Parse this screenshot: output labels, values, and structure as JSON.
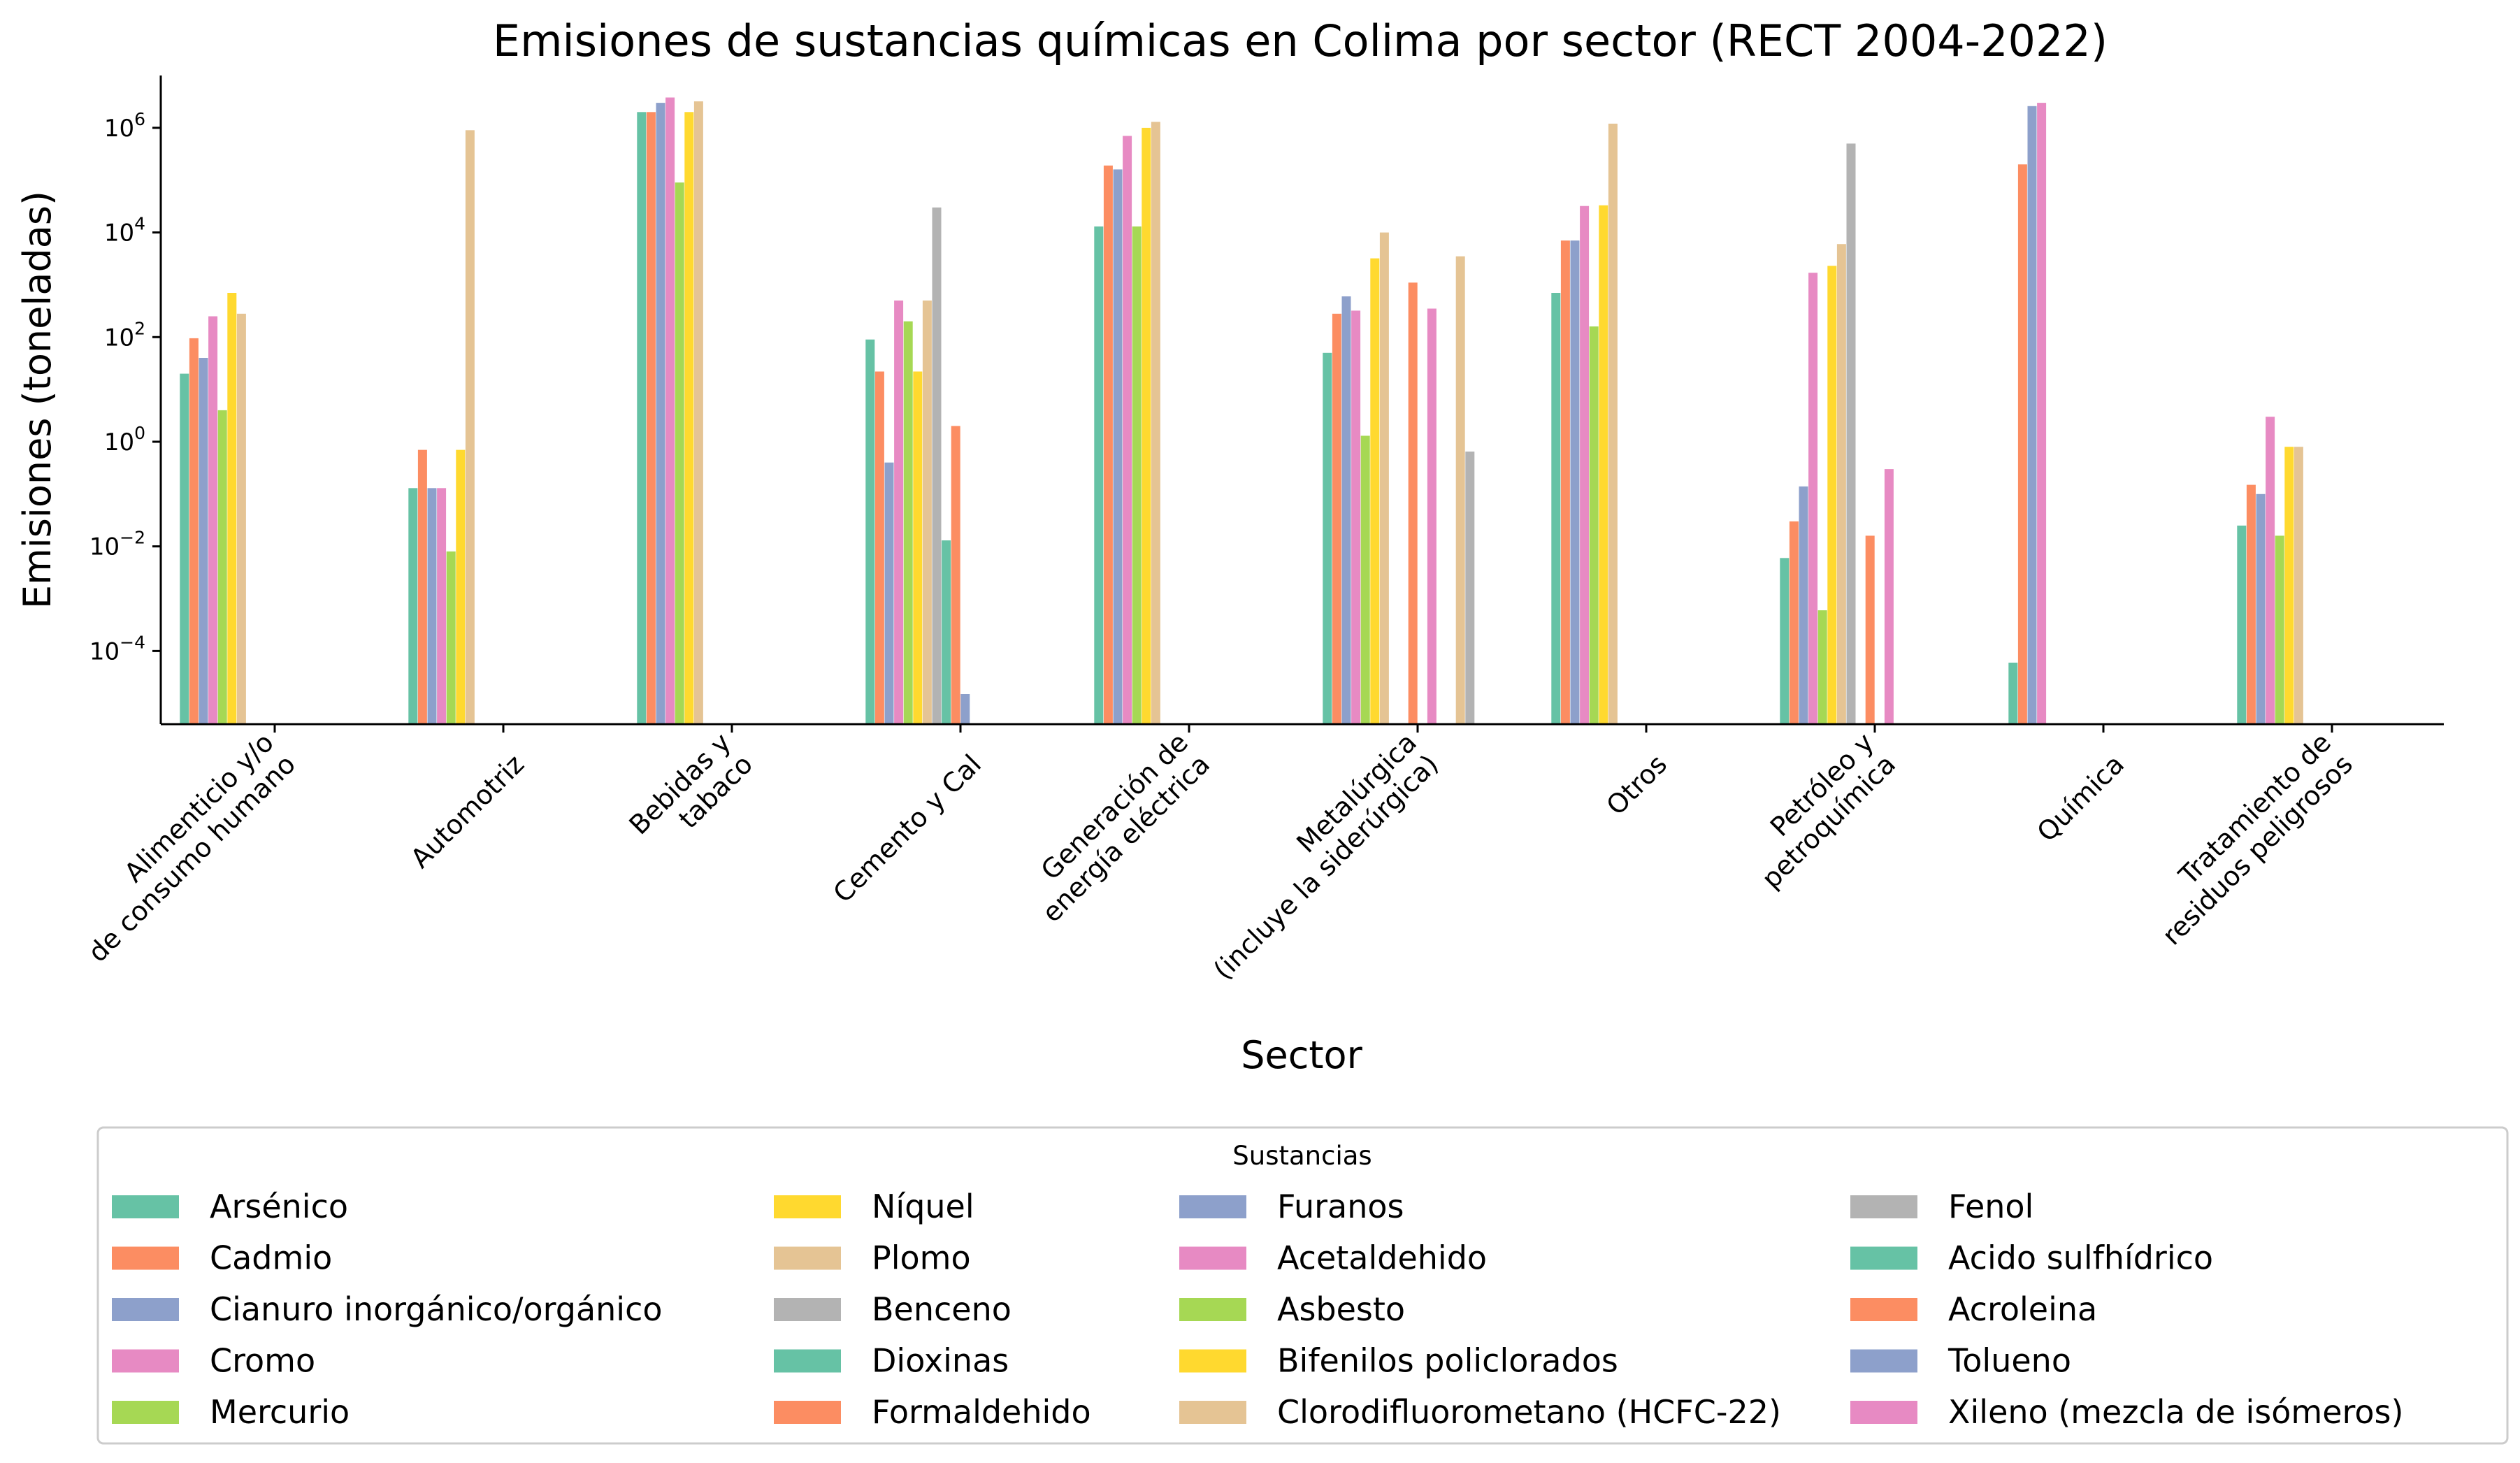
{
  "chart_data": {
    "type": "bar",
    "title": "Emisiones de sustancias químicas en Colima por sector (RECT 2004-2022)",
    "xlabel": "Sector",
    "ylabel": "Emisiones (toneladas)",
    "yscale": "log",
    "ylim": [
      4e-06,
      10000000
    ],
    "yticks": [
      {
        "value": 0.0001,
        "base": "10",
        "exp": "−4"
      },
      {
        "value": 0.01,
        "base": "10",
        "exp": "−2"
      },
      {
        "value": 1,
        "base": "10",
        "exp": "0"
      },
      {
        "value": 100,
        "base": "10",
        "exp": "2"
      },
      {
        "value": 10000,
        "base": "10",
        "exp": "4"
      },
      {
        "value": 1000000,
        "base": "10",
        "exp": "6"
      }
    ],
    "categories": [
      [
        "Alimenticio y/o",
        "de consumo humano"
      ],
      [
        "Automotriz"
      ],
      [
        "Bebidas y",
        "tabaco"
      ],
      [
        "Cemento y Cal"
      ],
      [
        "Generación de",
        "energía eléctrica"
      ],
      [
        "Metalúrgica",
        "(incluye la siderúrgica)"
      ],
      [
        "Otros"
      ],
      [
        "Petróleo y",
        "petroquímica"
      ],
      [
        "Química"
      ],
      [
        "Tratamiento de",
        "residuos peligrosos"
      ]
    ],
    "legend": {
      "title": "Sustancias",
      "placement": "below",
      "columns": 4
    },
    "series": [
      {
        "name": "Arsénico",
        "color": "#66c2a5",
        "values": [
          20,
          0.13,
          2000000,
          90,
          13000,
          50,
          700,
          0.006,
          6e-05,
          0.025
        ]
      },
      {
        "name": "Cadmio",
        "color": "#fc8d62",
        "values": [
          95,
          0.7,
          2000000,
          22,
          190000,
          280,
          7000,
          0.03,
          200000,
          0.15
        ]
      },
      {
        "name": "Cianuro inorgánico/orgánico",
        "color": "#8da0cb",
        "values": [
          40,
          0.13,
          3000000,
          0.4,
          160000,
          600,
          7000,
          0.14,
          2600000,
          0.1
        ]
      },
      {
        "name": "Cromo",
        "color": "#e78ac3",
        "values": [
          250,
          0.13,
          3800000,
          500,
          700000,
          320,
          32000,
          1700,
          3000000,
          3
        ]
      },
      {
        "name": "Mercurio",
        "color": "#a6d854",
        "values": [
          4,
          0.008,
          90000,
          200,
          13000,
          1.3,
          160,
          0.0006,
          null,
          0.016
        ]
      },
      {
        "name": "Níquel",
        "color": "#ffd92f",
        "values": [
          700,
          0.7,
          2000000,
          22,
          1000000,
          3200,
          33000,
          2300,
          null,
          0.8
        ]
      },
      {
        "name": "Plomo",
        "color": "#e5c494",
        "values": [
          280,
          900000,
          3200000,
          500,
          1300000,
          10000,
          1200000,
          6000,
          null,
          0.8
        ]
      },
      {
        "name": "Benceno",
        "color": "#b3b3b3",
        "values": [
          null,
          null,
          null,
          30000,
          null,
          null,
          null,
          500000,
          null,
          null
        ]
      },
      {
        "name": "Dioxinas",
        "color": "#66c2a5",
        "values": [
          null,
          null,
          null,
          0.013,
          null,
          null,
          null,
          null,
          null,
          null
        ]
      },
      {
        "name": "Formaldehido",
        "color": "#fc8d62",
        "values": [
          null,
          null,
          null,
          2,
          null,
          1100,
          null,
          0.016,
          null,
          null
        ]
      },
      {
        "name": "Furanos",
        "color": "#8da0cb",
        "values": [
          null,
          null,
          null,
          1.5e-05,
          null,
          null,
          null,
          null,
          null,
          null
        ]
      },
      {
        "name": "Acetaldehido",
        "color": "#e78ac3",
        "values": [
          null,
          null,
          null,
          null,
          null,
          350,
          null,
          0.3,
          null,
          null
        ]
      },
      {
        "name": "Asbesto",
        "color": "#a6d854",
        "values": [
          null,
          null,
          null,
          null,
          null,
          null,
          null,
          null,
          null,
          null
        ]
      },
      {
        "name": "Bifenilos policlorados",
        "color": "#ffd92f",
        "values": [
          null,
          null,
          null,
          null,
          null,
          null,
          null,
          null,
          null,
          null
        ]
      },
      {
        "name": "Clorodifluorometano (HCFC-22)",
        "color": "#e5c494",
        "values": [
          null,
          null,
          null,
          null,
          null,
          3500,
          null,
          null,
          null,
          null
        ]
      },
      {
        "name": "Fenol",
        "color": "#b3b3b3",
        "values": [
          null,
          null,
          null,
          null,
          null,
          0.65,
          null,
          null,
          null,
          null
        ]
      },
      {
        "name": "Acido sulfhídrico",
        "color": "#66c2a5",
        "values": [
          null,
          null,
          null,
          null,
          null,
          null,
          null,
          null,
          null,
          null
        ]
      },
      {
        "name": "Acroleina",
        "color": "#fc8d62",
        "values": [
          null,
          null,
          null,
          null,
          null,
          null,
          null,
          null,
          null,
          null
        ]
      },
      {
        "name": "Tolueno",
        "color": "#8da0cb",
        "values": [
          null,
          null,
          null,
          null,
          null,
          null,
          null,
          null,
          null,
          null
        ]
      },
      {
        "name": "Xileno (mezcla de isómeros)",
        "color": "#e78ac3",
        "values": [
          null,
          null,
          null,
          null,
          null,
          null,
          null,
          null,
          null,
          null
        ]
      }
    ]
  }
}
